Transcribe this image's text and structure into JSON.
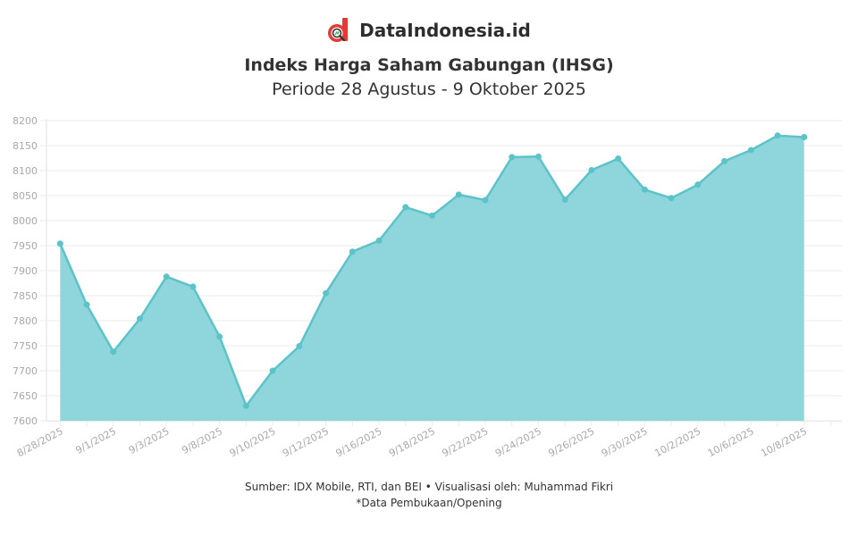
{
  "brand": {
    "name": "DataIndonesia.id",
    "logo_icon": "magnifier-d-logo",
    "logo_color": "#e53935"
  },
  "header": {
    "title": "Indeks Harga Saham Gabungan (IHSG)",
    "subtitle": "Periode 28 Agustus - 9 Oktober 2025"
  },
  "footer": {
    "source": "Sumber: IDX Mobile, RTI, dan BEI • Visualisasi oleh: Muhammad Fikri",
    "note": "*Data Pembukaan/Opening"
  },
  "colors": {
    "line": "#5bc3c9",
    "fill": "#8fd6dc",
    "grid": "#ebebeb",
    "tick_text": "#a8a8a8"
  },
  "chart_data": {
    "type": "area",
    "title": "Indeks Harga Saham Gabungan (IHSG)",
    "subtitle": "Periode 28 Agustus - 9 Oktober 2025",
    "xlabel": "",
    "ylabel": "",
    "ylim": [
      7600,
      8200
    ],
    "yticks": [
      7600,
      7650,
      7700,
      7750,
      7800,
      7850,
      7900,
      7950,
      8000,
      8050,
      8100,
      8150,
      8200
    ],
    "grid": true,
    "legend": "none",
    "x_tick_labels": [
      "8/28/2025",
      "9/1/2025",
      "9/3/2025",
      "9/8/2025",
      "9/10/2025",
      "9/12/2025",
      "9/16/2025",
      "9/18/2025",
      "9/22/2025",
      "9/24/2025",
      "9/26/2025",
      "9/30/2025",
      "10/2/2025",
      "10/6/2025",
      "10/8/2025"
    ],
    "x": [
      "8/28/2025",
      "8/29/2025",
      "9/1/2025",
      "9/2/2025",
      "9/3/2025",
      "9/4/2025",
      "9/8/2025",
      "9/9/2025",
      "9/10/2025",
      "9/11/2025",
      "9/12/2025",
      "9/15/2025",
      "9/16/2025",
      "9/17/2025",
      "9/18/2025",
      "9/19/2025",
      "9/22/2025",
      "9/23/2025",
      "9/24/2025",
      "9/25/2025",
      "9/26/2025",
      "9/29/2025",
      "9/30/2025",
      "10/1/2025",
      "10/2/2025",
      "10/3/2025",
      "10/6/2025",
      "10/7/2025",
      "10/8/2025"
    ],
    "series": [
      {
        "name": "IHSG (Opening)",
        "values": [
          7954,
          7832,
          7738,
          7804,
          7888,
          7868,
          7768,
          7630,
          7700,
          7749,
          7855,
          7938,
          7960,
          8027,
          8010,
          8052,
          8041,
          8127,
          8128,
          8042,
          8101,
          8124,
          8062,
          8045,
          8072,
          8119,
          8141,
          8170,
          8167
        ]
      }
    ]
  }
}
